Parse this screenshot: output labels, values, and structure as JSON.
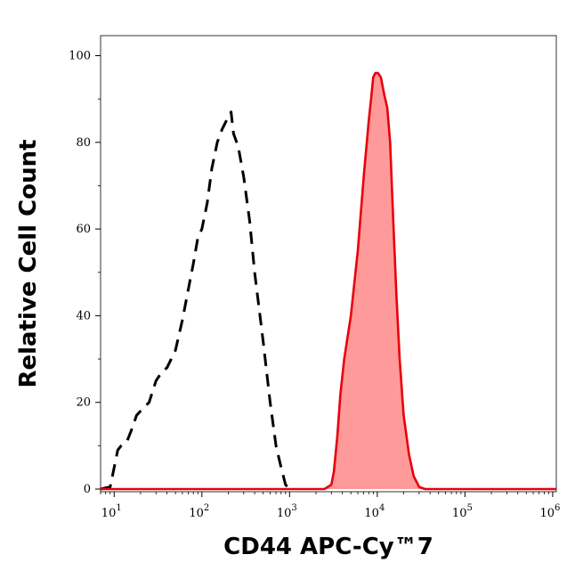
{
  "chart_data": {
    "type": "area",
    "xlabel": "CD44 APC-Cy™7",
    "ylabel": "Relative Cell Count",
    "x_scale": "log",
    "xlim": [
      7,
      1100000
    ],
    "ylim": [
      0,
      105
    ],
    "x_ticks": [
      {
        "base": "10",
        "exp": "1",
        "value": 10
      },
      {
        "base": "10",
        "exp": "2",
        "value": 100
      },
      {
        "base": "10",
        "exp": "3",
        "value": 1000
      },
      {
        "base": "10",
        "exp": "4",
        "value": 10000
      },
      {
        "base": "10",
        "exp": "5",
        "value": 100000
      },
      {
        "base": "10",
        "exp": "6",
        "value": 1000000
      }
    ],
    "y_ticks": [
      "0",
      "20",
      "40",
      "60",
      "80",
      "100"
    ],
    "grid": false,
    "legend": "none",
    "series": [
      {
        "style": "dashed",
        "color": "#000000",
        "fill": "none",
        "points": [
          [
            7,
            0
          ],
          [
            9,
            0.5
          ],
          [
            10,
            5
          ],
          [
            11,
            9
          ],
          [
            12,
            10
          ],
          [
            14,
            11
          ],
          [
            16,
            14
          ],
          [
            18,
            17
          ],
          [
            20,
            18
          ],
          [
            25,
            20
          ],
          [
            30,
            25
          ],
          [
            35,
            27
          ],
          [
            40,
            28
          ],
          [
            50,
            32
          ],
          [
            60,
            39
          ],
          [
            70,
            46
          ],
          [
            80,
            52
          ],
          [
            90,
            58
          ],
          [
            100,
            60
          ],
          [
            115,
            66
          ],
          [
            130,
            74
          ],
          [
            150,
            80
          ],
          [
            170,
            83
          ],
          [
            190,
            85
          ],
          [
            215,
            87
          ],
          [
            230,
            82
          ],
          [
            260,
            79
          ],
          [
            300,
            72
          ],
          [
            350,
            62
          ],
          [
            400,
            50
          ],
          [
            500,
            34
          ],
          [
            600,
            20
          ],
          [
            700,
            10
          ],
          [
            800,
            5
          ],
          [
            900,
            1
          ],
          [
            1000,
            0
          ]
        ]
      },
      {
        "style": "solid",
        "color": "#e8000b",
        "fill": "#ff9a9a",
        "points": [
          [
            7,
            0
          ],
          [
            2500,
            0
          ],
          [
            3000,
            1
          ],
          [
            3200,
            4
          ],
          [
            3500,
            12
          ],
          [
            3800,
            22
          ],
          [
            4200,
            30
          ],
          [
            5000,
            40
          ],
          [
            6000,
            55
          ],
          [
            7000,
            72
          ],
          [
            8000,
            85
          ],
          [
            8500,
            90
          ],
          [
            9000,
            95
          ],
          [
            9500,
            96
          ],
          [
            10200,
            96
          ],
          [
            11000,
            95
          ],
          [
            12000,
            91
          ],
          [
            13000,
            88
          ],
          [
            14000,
            80
          ],
          [
            15000,
            65
          ],
          [
            16500,
            45
          ],
          [
            18000,
            30
          ],
          [
            20000,
            17
          ],
          [
            23000,
            8
          ],
          [
            26000,
            3
          ],
          [
            30000,
            0.5
          ],
          [
            35000,
            0
          ],
          [
            1100000,
            0
          ]
        ]
      }
    ]
  }
}
